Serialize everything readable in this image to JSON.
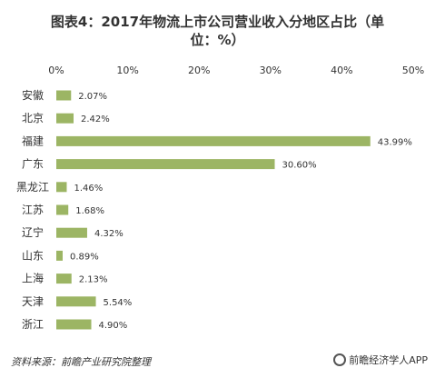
{
  "title_line1": "图表4：2017年物流上市公司营业收入分地区占比（单",
  "title_line2": "位：%）",
  "source": "资料来源：前瞻产业研究院整理",
  "brand": "前瞻经济学人APP",
  "chart_data": {
    "type": "bar",
    "orientation": "horizontal",
    "categories": [
      "安徽",
      "北京",
      "福建",
      "广东",
      "黑龙江",
      "江苏",
      "辽宁",
      "山东",
      "上海",
      "天津",
      "浙江"
    ],
    "values": [
      2.07,
      2.42,
      43.99,
      30.6,
      1.46,
      1.68,
      4.32,
      0.89,
      2.13,
      5.54,
      4.9
    ],
    "value_labels": [
      "2.07%",
      "2.42%",
      "43.99%",
      "30.60%",
      "1.46%",
      "1.68%",
      "4.32%",
      "0.89%",
      "2.13%",
      "5.54%",
      "4.90%"
    ],
    "xlim": [
      0,
      50
    ],
    "x_ticks": [
      0,
      10,
      20,
      30,
      40,
      50
    ],
    "x_tick_labels": [
      "0%",
      "10%",
      "20%",
      "30%",
      "40%",
      "50%"
    ],
    "axis_position": "top",
    "grid": false,
    "bar_color": "#9cb564"
  }
}
